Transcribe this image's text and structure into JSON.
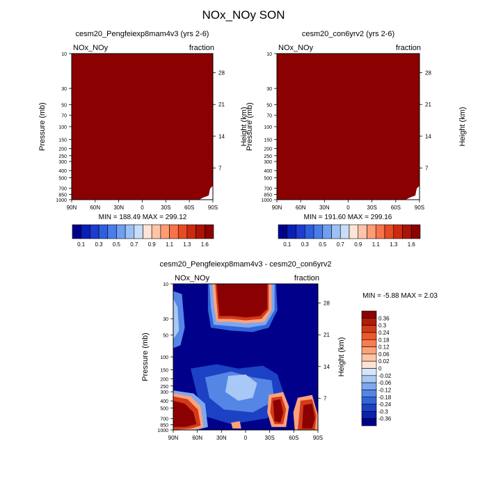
{
  "figure": {
    "title": "NOx_NOy SON"
  },
  "chart_data": [
    {
      "type": "heatmap",
      "panel": "left",
      "title": "cesm20_Pengfeiexp8mam4v3 (yrs 2-6)",
      "left_label": "NOx_NOy",
      "right_label": "fraction",
      "ylabel": "Pressure (mb)",
      "y2label": "Height (km)",
      "x_ticks": [
        "90N",
        "60N",
        "30N",
        "0",
        "30S",
        "60S",
        "90S"
      ],
      "y_ticks": [
        "10",
        "30",
        "50",
        "70",
        "100",
        "150",
        "200",
        "250",
        "300",
        "400",
        "500",
        "700",
        "850",
        "1000"
      ],
      "y_values": [
        10,
        30,
        50,
        70,
        100,
        150,
        200,
        250,
        300,
        400,
        500,
        700,
        850,
        1000
      ],
      "y2_ticks": [
        "28",
        "21",
        "14",
        "7"
      ],
      "y2_values": [
        28,
        21,
        14,
        7
      ],
      "ylim": [
        1000,
        10
      ],
      "xlim": [
        "90N",
        "90S"
      ],
      "summary": "MIN = 188.49   MAX = 299.12",
      "min": 188.49,
      "max": 299.12,
      "fill_color": "#8b0000",
      "colorbar": {
        "labels": [
          "0.1",
          "0.3",
          "0.5",
          "0.7",
          "0.9",
          "1.1",
          "1.3",
          "1.6"
        ],
        "colors": [
          "#00008b",
          "#0a1fb5",
          "#1e3ccd",
          "#2f5fe0",
          "#4a7de8",
          "#6f9ff0",
          "#9cc1f5",
          "#c8ddf8",
          "#ffe4d6",
          "#ffc4a8",
          "#ff9c74",
          "#f7744a",
          "#e84a24",
          "#cc2a10",
          "#aa1406",
          "#8b0000"
        ]
      }
    },
    {
      "type": "heatmap",
      "panel": "right",
      "title": "cesm20_con6yrv2 (yrs 2-6)",
      "left_label": "NOx_NOy",
      "right_label": "fraction",
      "ylabel": "Pressure (mb)",
      "y2label": "Height (km)",
      "x_ticks": [
        "90N",
        "60N",
        "30N",
        "0",
        "30S",
        "60S",
        "90S"
      ],
      "y_ticks": [
        "10",
        "30",
        "50",
        "70",
        "100",
        "150",
        "200",
        "250",
        "300",
        "400",
        "500",
        "700",
        "850",
        "1000"
      ],
      "y_values": [
        10,
        30,
        50,
        70,
        100,
        150,
        200,
        250,
        300,
        400,
        500,
        700,
        850,
        1000
      ],
      "y2_ticks": [
        "28",
        "21",
        "14",
        "7"
      ],
      "y2_values": [
        28,
        21,
        14,
        7
      ],
      "ylim": [
        1000,
        10
      ],
      "xlim": [
        "90N",
        "90S"
      ],
      "summary": "MIN = 191.60   MAX = 299.16",
      "min": 191.6,
      "max": 299.16,
      "fill_color": "#8b0000",
      "colorbar": {
        "labels": [
          "0.1",
          "0.3",
          "0.5",
          "0.7",
          "0.9",
          "1.1",
          "1.3",
          "1.6"
        ],
        "colors": [
          "#00008b",
          "#0a1fb5",
          "#1e3ccd",
          "#2f5fe0",
          "#4a7de8",
          "#6f9ff0",
          "#9cc1f5",
          "#c8ddf8",
          "#ffe4d6",
          "#ffc4a8",
          "#ff9c74",
          "#f7744a",
          "#e84a24",
          "#cc2a10",
          "#aa1406",
          "#8b0000"
        ]
      }
    },
    {
      "type": "heatmap",
      "panel": "difference",
      "title": "cesm20_Pengfeiexp8mam4v3 - cesm20_con6yrv2",
      "left_label": "NOx_NOy",
      "right_label": "fraction",
      "ylabel": "Pressure (mb)",
      "y2label": "Height (km)",
      "x_ticks": [
        "90N",
        "60N",
        "30N",
        "0",
        "30S",
        "60S",
        "90S"
      ],
      "y_ticks": [
        "10",
        "30",
        "50",
        "100",
        "150",
        "200",
        "250",
        "300",
        "400",
        "500",
        "700",
        "850",
        "1000"
      ],
      "y_values": [
        10,
        30,
        50,
        100,
        150,
        200,
        250,
        300,
        400,
        500,
        700,
        850,
        1000
      ],
      "y2_ticks": [
        "28",
        "21",
        "14",
        "7"
      ],
      "y2_values": [
        28,
        21,
        14,
        7
      ],
      "ylim": [
        1000,
        10
      ],
      "xlim": [
        "90N",
        "90S"
      ],
      "summary": "MIN =  -5.88   MAX =   2.03",
      "min": -5.88,
      "max": 2.03,
      "background_color": "#00008b",
      "colorbar": {
        "labels": [
          "0.36",
          "0.3",
          "0.24",
          "0.18",
          "0.12",
          "0.06",
          "0.02",
          "0",
          "-0.02",
          "-0.06",
          "-0.12",
          "-0.18",
          "-0.24",
          "-0.3",
          "-0.36"
        ],
        "colors": [
          "#8b0000",
          "#b21a0a",
          "#d23a18",
          "#ea5a2c",
          "#f97d4c",
          "#fca27a",
          "#fdc6a8",
          "#fde3d4",
          "#d6e6f8",
          "#a8c8f5",
          "#7ea7ef",
          "#5586e6",
          "#3264da",
          "#1c41c4",
          "#0c22a8",
          "#00008b"
        ]
      }
    }
  ]
}
